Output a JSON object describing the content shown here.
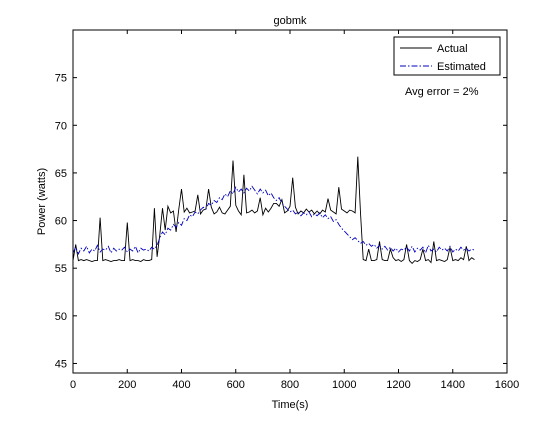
{
  "chart_data": {
    "type": "line",
    "title": "gobmk",
    "xlabel": "Time(s)",
    "ylabel": "Power (watts)",
    "xlim": [
      0,
      1600
    ],
    "ylim": [
      44,
      80
    ],
    "xticks": [
      0,
      200,
      400,
      600,
      800,
      1000,
      1200,
      1400,
      1600
    ],
    "yticks": [
      45,
      50,
      55,
      60,
      65,
      70,
      75
    ],
    "grid": false,
    "legend_position": "top-right",
    "annotation": "Avg error =  2%",
    "series": [
      {
        "name": "Actual",
        "color": "#000000",
        "style": "solid",
        "x": [
          0,
          10,
          20,
          30,
          40,
          50,
          60,
          70,
          80,
          90,
          100,
          110,
          120,
          130,
          140,
          150,
          160,
          170,
          180,
          190,
          200,
          210,
          220,
          230,
          240,
          250,
          260,
          270,
          280,
          290,
          300,
          310,
          320,
          330,
          340,
          350,
          360,
          370,
          380,
          390,
          400,
          410,
          420,
          430,
          440,
          450,
          460,
          470,
          480,
          490,
          500,
          510,
          520,
          530,
          540,
          550,
          560,
          570,
          580,
          590,
          600,
          610,
          620,
          630,
          640,
          650,
          660,
          670,
          680,
          690,
          700,
          710,
          720,
          730,
          740,
          750,
          760,
          770,
          780,
          790,
          800,
          810,
          820,
          830,
          840,
          850,
          860,
          870,
          880,
          890,
          900,
          910,
          920,
          930,
          940,
          950,
          960,
          970,
          980,
          990,
          1000,
          1010,
          1020,
          1030,
          1040,
          1050,
          1060,
          1070,
          1080,
          1090,
          1100,
          1110,
          1120,
          1130,
          1140,
          1150,
          1160,
          1170,
          1180,
          1190,
          1200,
          1210,
          1220,
          1230,
          1240,
          1250,
          1260,
          1270,
          1280,
          1290,
          1300,
          1310,
          1320,
          1330,
          1340,
          1350,
          1360,
          1370,
          1380,
          1390,
          1400,
          1410,
          1420,
          1430,
          1440,
          1450,
          1460,
          1470,
          1480
        ],
        "values": [
          55.8,
          57.5,
          55.8,
          55.9,
          55.8,
          55.9,
          55.8,
          55.7,
          55.8,
          55.8,
          60.3,
          55.8,
          55.9,
          55.8,
          55.7,
          55.8,
          55.8,
          55.9,
          55.8,
          55.8,
          59.8,
          55.8,
          55.9,
          55.8,
          55.8,
          55.7,
          55.9,
          55.8,
          55.8,
          55.9,
          61.3,
          56.2,
          58.5,
          61.3,
          59.0,
          61.5,
          60.8,
          61.0,
          58.8,
          61.2,
          63.3,
          60.9,
          61.3,
          60.8,
          60.9,
          61.0,
          62.7,
          60.7,
          61.1,
          61.2,
          63.3,
          61.4,
          60.7,
          60.9,
          61.4,
          60.8,
          60.7,
          61.1,
          61.5,
          66.3,
          61.6,
          61.0,
          60.6,
          64.8,
          60.8,
          60.9,
          61.1,
          60.8,
          61.0,
          62.4,
          60.6,
          61.3,
          60.9,
          61.3,
          61.8,
          61.8,
          61.5,
          62.2,
          60.8,
          61.0,
          61.5,
          64.5,
          61.4,
          60.7,
          61.0,
          60.8,
          61.2,
          60.9,
          61.1,
          60.7,
          61.0,
          60.7,
          61.1,
          60.9,
          62.3,
          61.1,
          60.9,
          60.7,
          63.5,
          61.2,
          61.0,
          60.8,
          61.1,
          61.0,
          60.8,
          66.7,
          60.8,
          55.9,
          55.8,
          57.0,
          55.8,
          55.8,
          55.9,
          57.8,
          55.9,
          55.8,
          55.8,
          57.0,
          56.1,
          55.8,
          55.9,
          55.7,
          55.9,
          57.5,
          55.8,
          55.5,
          55.8,
          55.7,
          55.9,
          57.0,
          55.8,
          55.9,
          55.6,
          57.8,
          55.8,
          55.9,
          55.8,
          55.7,
          55.9,
          57.2,
          55.8,
          55.9,
          55.8,
          56.1,
          55.9,
          57.3,
          55.8,
          56.1,
          55.9
        ]
      },
      {
        "name": "Estimated",
        "color": "#0000bf",
        "style": "dash-dot",
        "x": [
          0,
          10,
          20,
          30,
          40,
          50,
          60,
          70,
          80,
          90,
          100,
          110,
          120,
          130,
          140,
          150,
          160,
          170,
          180,
          190,
          200,
          210,
          220,
          230,
          240,
          250,
          260,
          270,
          280,
          290,
          300,
          310,
          320,
          330,
          340,
          350,
          360,
          370,
          380,
          390,
          400,
          410,
          420,
          430,
          440,
          450,
          460,
          470,
          480,
          490,
          500,
          510,
          520,
          530,
          540,
          550,
          560,
          570,
          580,
          590,
          600,
          610,
          620,
          630,
          640,
          650,
          660,
          670,
          680,
          690,
          700,
          710,
          720,
          730,
          740,
          750,
          760,
          770,
          780,
          790,
          800,
          810,
          820,
          830,
          840,
          850,
          860,
          870,
          880,
          890,
          900,
          910,
          920,
          930,
          940,
          950,
          960,
          970,
          980,
          990,
          1000,
          1010,
          1020,
          1030,
          1040,
          1050,
          1060,
          1070,
          1080,
          1090,
          1100,
          1110,
          1120,
          1130,
          1140,
          1150,
          1160,
          1170,
          1180,
          1190,
          1200,
          1210,
          1220,
          1230,
          1240,
          1250,
          1260,
          1270,
          1280,
          1290,
          1300,
          1310,
          1320,
          1330,
          1340,
          1350,
          1360,
          1370,
          1380,
          1390,
          1400,
          1410,
          1420,
          1430,
          1440,
          1450,
          1460,
          1470,
          1480
        ],
        "values": [
          56.6,
          57.2,
          56.5,
          57.1,
          56.8,
          57.3,
          56.6,
          57.0,
          56.8,
          57.4,
          56.7,
          57.0,
          56.9,
          57.3,
          56.6,
          57.1,
          56.8,
          57.0,
          56.9,
          57.2,
          56.7,
          57.0,
          56.8,
          57.3,
          56.6,
          57.1,
          56.9,
          57.0,
          56.8,
          57.2,
          57.0,
          57.4,
          58.2,
          58.8,
          58.5,
          59.2,
          59.0,
          59.6,
          59.3,
          59.8,
          59.5,
          60.2,
          60.0,
          60.6,
          60.4,
          60.9,
          60.7,
          61.1,
          61.4,
          61.2,
          61.8,
          61.6,
          62.1,
          61.9,
          62.4,
          62.2,
          62.8,
          62.5,
          63.1,
          62.8,
          63.5,
          63.0,
          63.3,
          62.9,
          63.4,
          63.1,
          63.6,
          63.2,
          62.8,
          63.3,
          62.9,
          63.2,
          62.6,
          62.9,
          62.4,
          62.1,
          62.4,
          61.8,
          61.5,
          61.2,
          60.9,
          61.1,
          60.7,
          60.9,
          60.5,
          60.8,
          60.6,
          60.9,
          60.4,
          60.7,
          60.5,
          60.8,
          60.3,
          60.6,
          60.2,
          60.4,
          59.9,
          60.1,
          59.6,
          59.2,
          58.9,
          58.6,
          58.3,
          58.0,
          58.2,
          57.9,
          57.6,
          57.8,
          57.4,
          57.6,
          57.3,
          57.5,
          57.1,
          57.4,
          57.0,
          57.3,
          56.9,
          57.2,
          56.8,
          57.1,
          56.7,
          57.0,
          56.9,
          57.2,
          56.8,
          57.3,
          56.7,
          57.1,
          56.9,
          57.2,
          56.6,
          57.4,
          56.8,
          57.0,
          56.7,
          57.2,
          56.9,
          57.1,
          56.8,
          57.3,
          56.7,
          57.0,
          56.8,
          57.2,
          56.9,
          57.1,
          56.8,
          57.0,
          56.9
        ]
      }
    ]
  }
}
